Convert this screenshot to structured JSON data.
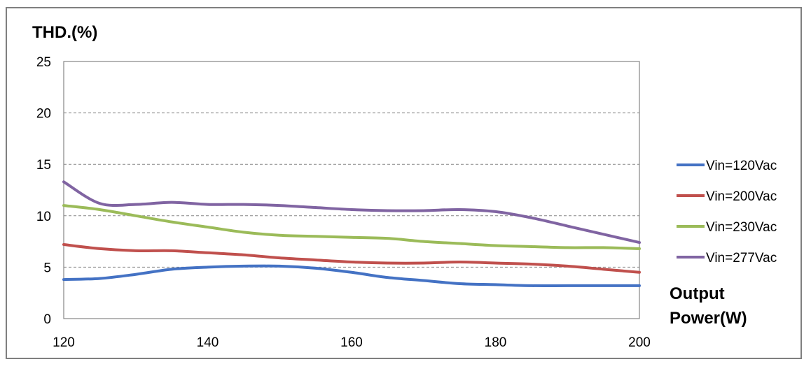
{
  "chart_data": {
    "type": "line",
    "ylabel": "THD.(%)",
    "xlabel_lines": [
      "Output",
      "Power(W)"
    ],
    "xlim": [
      120,
      200
    ],
    "ylim": [
      0,
      25
    ],
    "xticks": [
      120,
      140,
      160,
      180,
      200
    ],
    "yticks": [
      0,
      5,
      10,
      15,
      20,
      25
    ],
    "grid": "horizontal-dashed",
    "legend_position": "right",
    "series": [
      {
        "name": "Vin=120Vac",
        "color": "#4472c4",
        "x": [
          120,
          125,
          130,
          135,
          140,
          145,
          150,
          155,
          160,
          165,
          170,
          175,
          180,
          185,
          190,
          195,
          200
        ],
        "y": [
          3.8,
          3.9,
          4.3,
          4.8,
          5.0,
          5.1,
          5.1,
          4.9,
          4.5,
          4.0,
          3.7,
          3.4,
          3.3,
          3.2,
          3.2,
          3.2,
          3.2
        ]
      },
      {
        "name": "Vin=200Vac",
        "color": "#c0504d",
        "x": [
          120,
          125,
          130,
          135,
          140,
          145,
          150,
          155,
          160,
          165,
          170,
          175,
          180,
          185,
          190,
          195,
          200
        ],
        "y": [
          7.2,
          6.8,
          6.6,
          6.6,
          6.4,
          6.2,
          5.9,
          5.7,
          5.5,
          5.4,
          5.4,
          5.5,
          5.4,
          5.3,
          5.1,
          4.8,
          4.5
        ]
      },
      {
        "name": "Vin=230Vac",
        "color": "#9bbb59",
        "x": [
          120,
          125,
          130,
          135,
          140,
          145,
          150,
          155,
          160,
          165,
          170,
          175,
          180,
          185,
          190,
          195,
          200
        ],
        "y": [
          11.0,
          10.6,
          10.0,
          9.4,
          8.9,
          8.4,
          8.1,
          8.0,
          7.9,
          7.8,
          7.5,
          7.3,
          7.1,
          7.0,
          6.9,
          6.9,
          6.8
        ]
      },
      {
        "name": "Vin=277Vac",
        "color": "#8064a2",
        "x": [
          120,
          125,
          130,
          135,
          140,
          145,
          150,
          155,
          160,
          165,
          170,
          175,
          180,
          185,
          190,
          195,
          200
        ],
        "y": [
          13.3,
          11.2,
          11.1,
          11.3,
          11.1,
          11.1,
          11.0,
          10.8,
          10.6,
          10.5,
          10.5,
          10.6,
          10.4,
          9.8,
          9.0,
          8.2,
          7.4
        ]
      }
    ]
  }
}
